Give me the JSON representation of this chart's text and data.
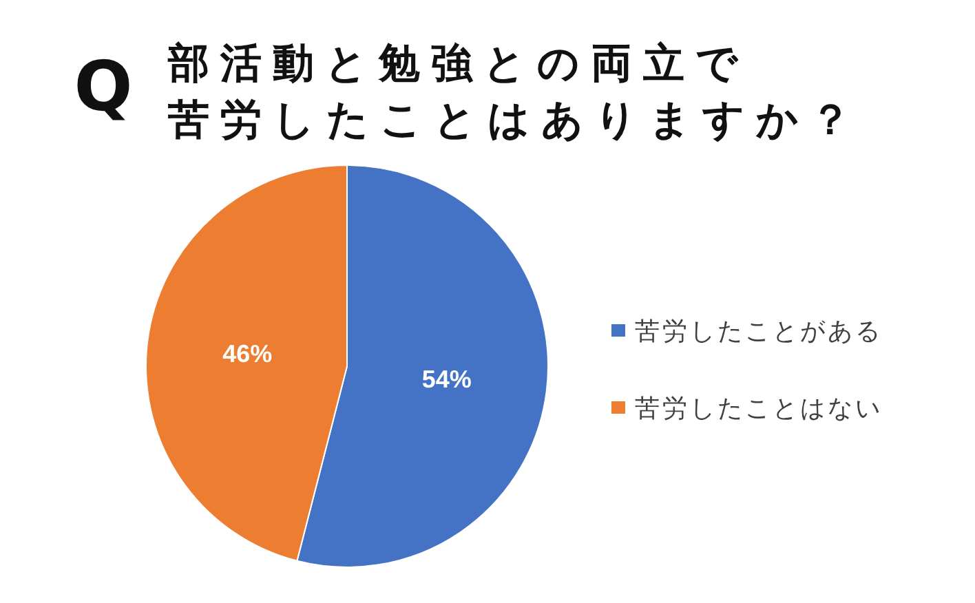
{
  "chart_data": {
    "type": "pie",
    "title": "部活動と勉強との両立で",
    "subtitle": "苦労したことはありますか？",
    "annotations": [
      "Q"
    ],
    "categories": [
      "苦労したことがある",
      "苦労したことはない"
    ],
    "values": [
      54,
      46
    ],
    "colors": [
      "#4472c4",
      "#ed7d31"
    ],
    "value_labels": [
      "54%",
      "46%"
    ],
    "legend": "right"
  }
}
